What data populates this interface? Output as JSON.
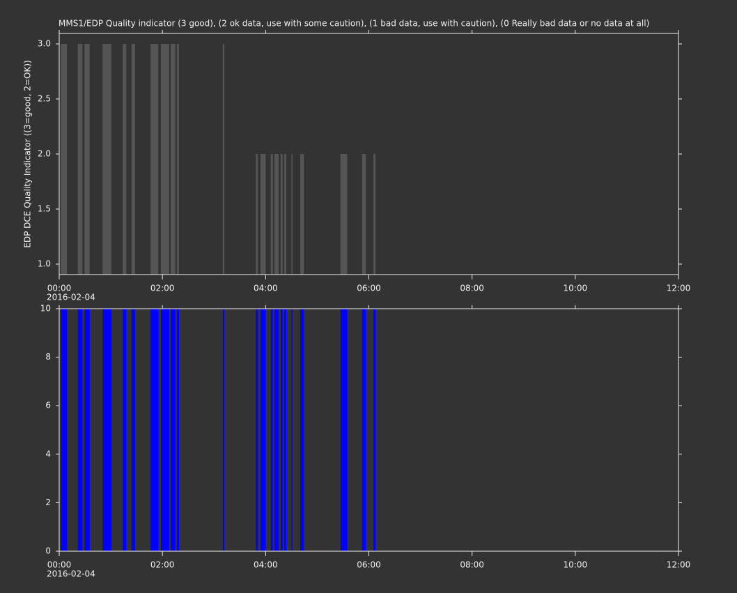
{
  "chart_data": [
    {
      "type": "bar",
      "title": "MMS1/EDP  Quality indicator (3 good), (2 ok data, use with some caution), (1 bad data, use with caution), (0 Really bad data or no data at all)",
      "y_label": "EDP DCE Quality Indicator ((3=good, 2=OK))",
      "x_date_label": "2016-02-04",
      "color": "#555555",
      "x_start": [
        0.03,
        0.36,
        0.49,
        0.84,
        1.23,
        1.4,
        1.77,
        1.97,
        2.16,
        2.28,
        3.17,
        3.81,
        3.9,
        4.1,
        4.17,
        4.29,
        4.36,
        4.5,
        4.67,
        5.45,
        5.87,
        6.09
      ],
      "x_end": [
        0.15,
        0.45,
        0.59,
        1.01,
        1.3,
        1.47,
        1.92,
        2.13,
        2.25,
        2.32,
        3.2,
        3.85,
        4.0,
        4.14,
        4.25,
        4.33,
        4.4,
        4.52,
        4.74,
        5.58,
        5.94,
        6.13
      ],
      "values": [
        3,
        3,
        3,
        3,
        3,
        3,
        3,
        3,
        3,
        3,
        3,
        2,
        2,
        2,
        2,
        2,
        2,
        2,
        2,
        2,
        2,
        2
      ],
      "xlim": [
        0,
        12
      ],
      "xticks": [
        {
          "value": 0,
          "label": "00:00"
        },
        {
          "value": 2,
          "label": "02:00"
        },
        {
          "value": 4,
          "label": "04:00"
        },
        {
          "value": 6,
          "label": "06:00"
        },
        {
          "value": 8,
          "label": "08:00"
        },
        {
          "value": 10,
          "label": "10:00"
        },
        {
          "value": 12,
          "label": "12:00"
        }
      ],
      "ylim": [
        0.905,
        3.095
      ],
      "yticks": [
        {
          "value": 1,
          "label": "1.0"
        },
        1.5,
        {
          "value": 2,
          "label": "2.0"
        },
        2.5,
        {
          "value": 3,
          "label": "3.0"
        }
      ]
    },
    {
      "type": "bar",
      "x_date_label": "2016-02-04",
      "color": "#0000ff",
      "x_start": [
        0.03,
        0.36,
        0.49,
        0.84,
        1.23,
        1.4,
        1.77,
        1.97,
        2.16,
        2.28,
        3.17,
        3.81,
        3.9,
        4.1,
        4.17,
        4.29,
        4.36,
        4.5,
        4.67,
        5.45,
        5.87,
        6.09
      ],
      "x_end": [
        0.15,
        0.45,
        0.59,
        1.01,
        1.3,
        1.47,
        1.92,
        2.13,
        2.25,
        2.32,
        3.2,
        3.85,
        4.0,
        4.14,
        4.25,
        4.33,
        4.4,
        4.52,
        4.74,
        5.58,
        5.94,
        6.13
      ],
      "values": [
        10,
        10,
        10,
        10,
        10,
        10,
        10,
        10,
        10,
        10,
        10,
        10,
        10,
        10,
        10,
        10,
        10,
        10,
        10,
        10,
        10,
        10
      ],
      "xlim": [
        0,
        12
      ],
      "xticks": [
        {
          "value": 0,
          "label": "00:00"
        },
        {
          "value": 2,
          "label": "02:00"
        },
        {
          "value": 4,
          "label": "04:00"
        },
        {
          "value": 6,
          "label": "06:00"
        },
        {
          "value": 8,
          "label": "08:00"
        },
        {
          "value": 10,
          "label": "10:00"
        },
        {
          "value": 12,
          "label": "12:00"
        }
      ],
      "ylim": [
        0,
        10
      ],
      "yticks": [
        0,
        2,
        4,
        6,
        8,
        10
      ]
    }
  ]
}
